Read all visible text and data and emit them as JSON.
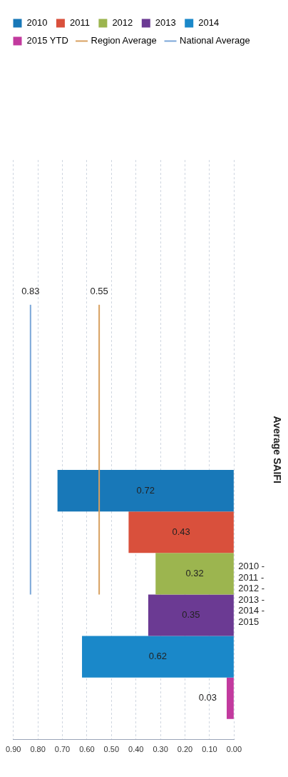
{
  "chart_data": {
    "type": "bar",
    "orientation": "horizontal",
    "ylabel": "Average SAIFI",
    "categories": [
      null,
      "2010 - 2011 - 2012 - 2013 - 2014 - 2015"
    ],
    "series": [
      {
        "name": "2010",
        "color": "#1878b8",
        "values": [
          null,
          0.72
        ]
      },
      {
        "name": "2011",
        "color": "#d9503c",
        "values": [
          null,
          0.43
        ]
      },
      {
        "name": "2012",
        "color": "#9cb54f",
        "values": [
          null,
          0.32
        ]
      },
      {
        "name": "2013",
        "color": "#6b3a93",
        "values": [
          null,
          0.35
        ]
      },
      {
        "name": "2014",
        "color": "#1a88c9",
        "values": [
          null,
          0.62
        ]
      },
      {
        "name": "2015 YTD",
        "color": "#c23a9e",
        "values": [
          null,
          0.03
        ]
      },
      {
        "name": "Region Average",
        "type": "line",
        "color": "#d8a060",
        "values": [
          0.55,
          0.55
        ],
        "value_labels": [
          "0.55",
          null
        ]
      },
      {
        "name": "National Average",
        "type": "line",
        "color": "#7aa6d8",
        "values": [
          0.83,
          0.83
        ],
        "value_labels": [
          "0.83",
          null
        ]
      }
    ],
    "xlim": [
      0.9,
      0
    ],
    "xticks": [
      {
        "value": 0.9,
        "label": "0.90"
      },
      {
        "value": 0.8,
        "label": "0.80"
      },
      {
        "value": 0.7,
        "label": "0.70"
      },
      {
        "value": 0.6,
        "label": "0.60"
      },
      {
        "value": 0.5,
        "label": "0.50"
      },
      {
        "value": 0.4,
        "label": "0.40"
      },
      {
        "value": 0.3,
        "label": "0.30"
      },
      {
        "value": 0.2,
        "label": "0.20"
      },
      {
        "value": 0.1,
        "label": "0.10"
      },
      {
        "value": 0,
        "label": "0.00"
      }
    ],
    "grid": "x",
    "legend": "top",
    "data_labels": true
  }
}
